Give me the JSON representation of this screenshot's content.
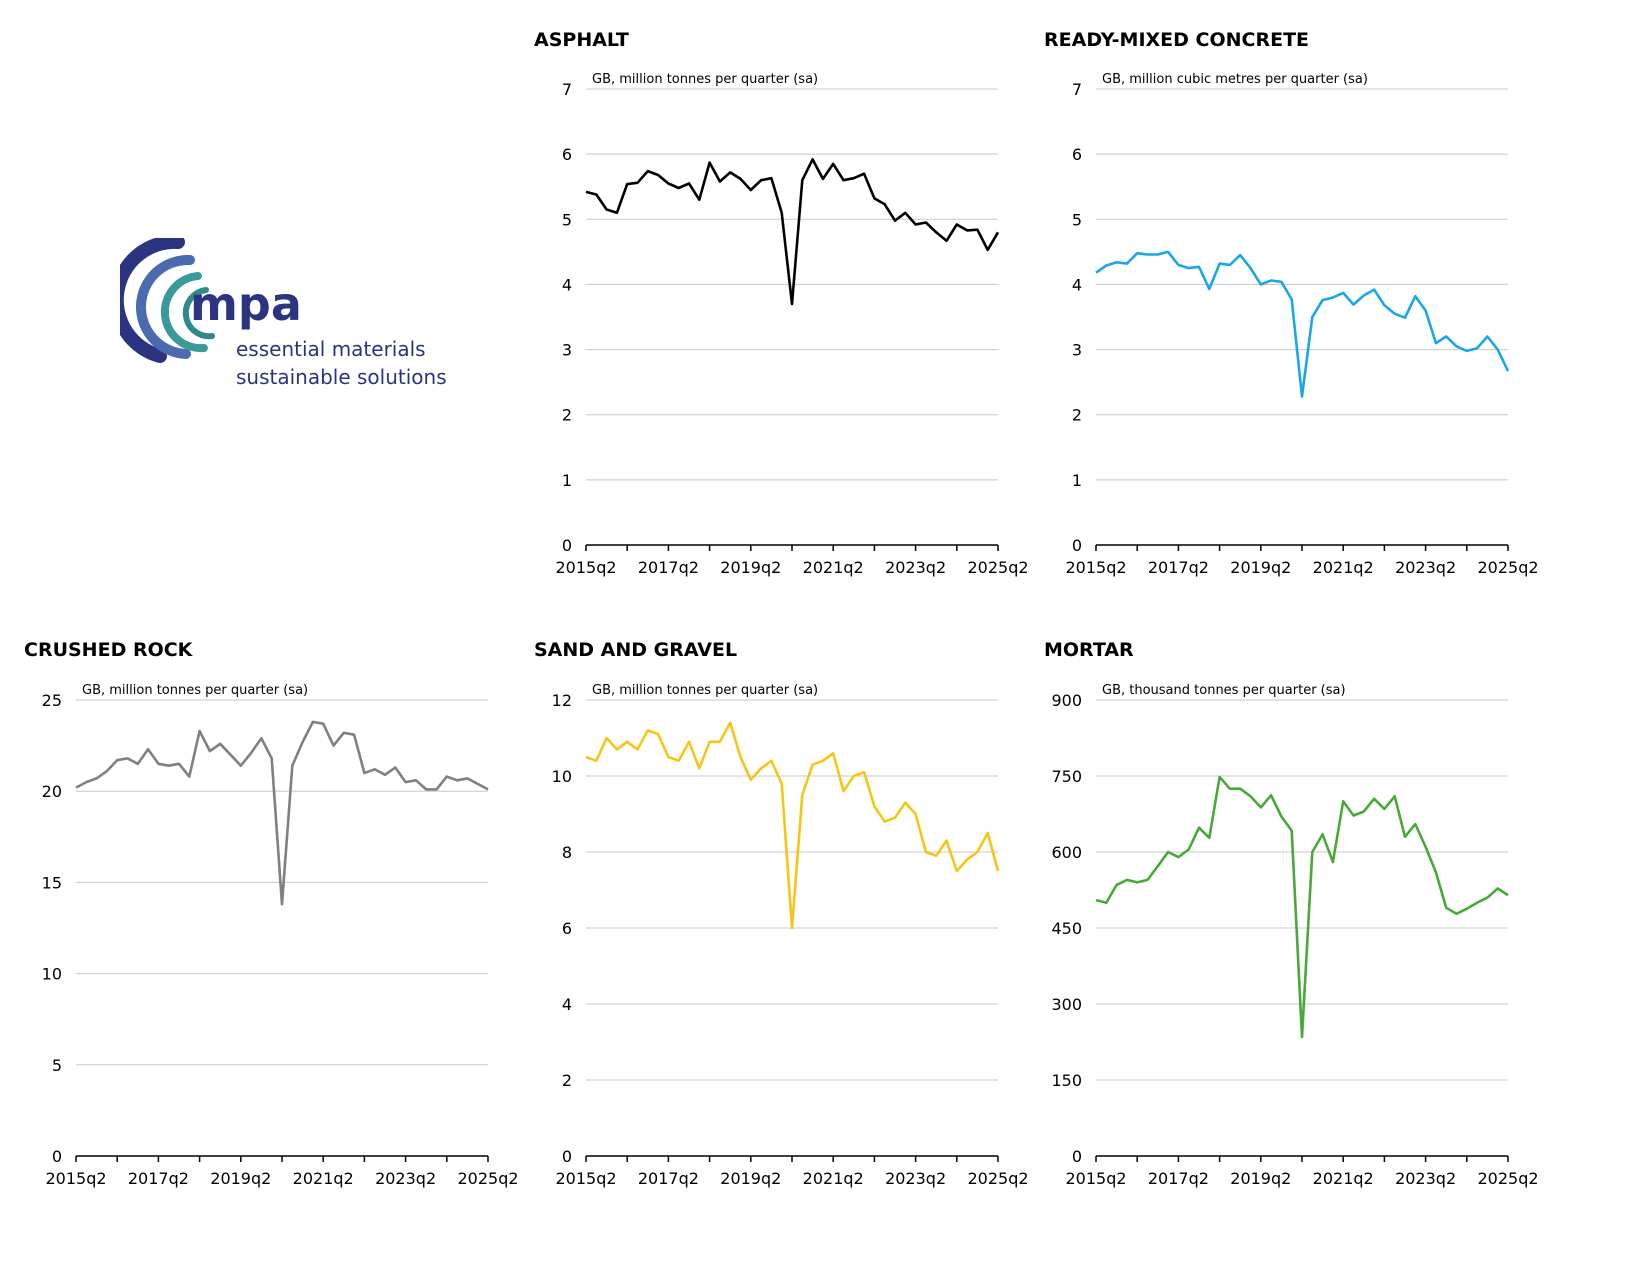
{
  "logo": {
    "word": "mpa",
    "line1": "essential materials",
    "line2": "sustainable solutions"
  },
  "x_tick_labels": [
    "2015q2",
    "2017q2",
    "2019q2",
    "2021q2",
    "2023q2",
    "2025q2"
  ],
  "chart_data": [
    {
      "type": "line",
      "title": "ASPHALT",
      "unit_label": "GB, million tonnes per quarter (sa)",
      "color": "#000000",
      "ylim": [
        0,
        7
      ],
      "yticks": [
        "0",
        "1",
        "2",
        "3",
        "4",
        "5",
        "6",
        "7"
      ],
      "grid": true,
      "series": [
        {
          "values": [
            5.42,
            5.38,
            5.15,
            5.1,
            5.54,
            5.56,
            5.74,
            5.68,
            5.55,
            5.48,
            5.55,
            5.3,
            5.87,
            5.58,
            5.72,
            5.62,
            5.45,
            5.6,
            5.63,
            5.1,
            3.7,
            5.6,
            5.92,
            5.62,
            5.85,
            5.6,
            5.63,
            5.7,
            5.32,
            5.23,
            4.98,
            5.1,
            4.92,
            4.95,
            4.8,
            4.67,
            4.92,
            4.83,
            4.84,
            4.53,
            4.8
          ]
        }
      ]
    },
    {
      "type": "line",
      "title": "READY-MIXED CONCRETE",
      "unit_label": "GB, million cubic metres per quarter (sa)",
      "color": "#1aa7e6",
      "ylim": [
        0,
        7
      ],
      "yticks": [
        "0",
        "1",
        "2",
        "3",
        "4",
        "5",
        "6",
        "7"
      ],
      "grid": true,
      "series": [
        {
          "values": [
            4.18,
            4.29,
            4.34,
            4.32,
            4.48,
            4.46,
            4.46,
            4.5,
            4.3,
            4.25,
            4.27,
            3.93,
            4.32,
            4.3,
            4.45,
            4.25,
            4.0,
            4.06,
            4.04,
            3.77,
            2.28,
            3.5,
            3.76,
            3.8,
            3.87,
            3.69,
            3.83,
            3.92,
            3.68,
            3.55,
            3.49,
            3.82,
            3.6,
            3.1,
            3.2,
            3.05,
            2.98,
            3.02,
            3.2,
            3.0,
            2.67
          ]
        }
      ]
    },
    {
      "type": "line",
      "title": "CRUSHED ROCK",
      "unit_label": "GB, million tonnes per quarter (sa)",
      "color": "#808080",
      "ylim": [
        0,
        25
      ],
      "yticks": [
        "0",
        "5",
        "10",
        "15",
        "20",
        "25"
      ],
      "grid": true,
      "series": [
        {
          "values": [
            20.2,
            20.5,
            20.7,
            21.1,
            21.7,
            21.8,
            21.5,
            22.3,
            21.5,
            21.4,
            21.5,
            20.8,
            23.3,
            22.2,
            22.6,
            22.0,
            21.4,
            22.1,
            22.9,
            21.8,
            13.8,
            21.4,
            22.7,
            23.8,
            23.7,
            22.5,
            23.2,
            23.1,
            21.0,
            21.2,
            20.9,
            21.3,
            20.5,
            20.6,
            20.1,
            20.1,
            20.8,
            20.6,
            20.7,
            20.4,
            20.1
          ]
        }
      ]
    },
    {
      "type": "line",
      "title": "SAND AND GRAVEL",
      "unit_label": "GB, million tonnes per quarter (sa)",
      "color": "#f5c518",
      "ylim": [
        0,
        12
      ],
      "yticks": [
        "0",
        "2",
        "4",
        "6",
        "8",
        "10",
        "12"
      ],
      "grid": true,
      "series": [
        {
          "values": [
            10.5,
            10.4,
            11.0,
            10.7,
            10.9,
            10.7,
            11.2,
            11.1,
            10.5,
            10.4,
            10.9,
            10.2,
            10.9,
            10.9,
            11.4,
            10.5,
            9.9,
            10.2,
            10.4,
            9.8,
            6.0,
            9.5,
            10.3,
            10.4,
            10.6,
            9.6,
            10.0,
            10.1,
            9.2,
            8.8,
            8.9,
            9.3,
            9.0,
            8.0,
            7.9,
            8.3,
            7.5,
            7.8,
            8.0,
            8.5,
            7.5
          ]
        }
      ]
    },
    {
      "type": "line",
      "title": "MORTAR",
      "unit_label": "GB, thousand tonnes per quarter (sa)",
      "color": "#4aa83a",
      "ylim": [
        0,
        900
      ],
      "yticks": [
        "0",
        "150",
        "300",
        "450",
        "600",
        "750",
        "900"
      ],
      "grid": true,
      "series": [
        {
          "values": [
            505,
            500,
            535,
            545,
            540,
            545,
            572,
            600,
            590,
            605,
            648,
            628,
            748,
            725,
            725,
            710,
            688,
            712,
            670,
            642,
            235,
            600,
            635,
            580,
            700,
            672,
            680,
            705,
            685,
            710,
            630,
            655,
            610,
            560,
            490,
            478,
            488,
            500,
            510,
            528,
            515
          ]
        }
      ]
    }
  ]
}
